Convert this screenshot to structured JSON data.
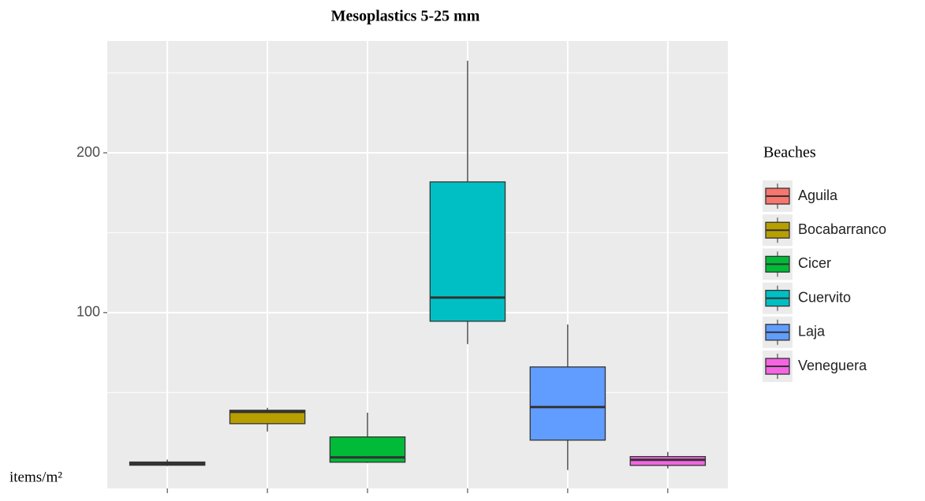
{
  "chart_data": {
    "type": "boxplot",
    "title": "Mesoplastics 5-25 mm",
    "y_label": "items/m²",
    "legend_title": "Beaches",
    "categories": [
      null,
      null,
      null,
      null,
      null,
      null
    ],
    "series": [
      {
        "name": "Aguila",
        "color": "#F8766D",
        "min": 4,
        "q1": 4.5,
        "median": 5.5,
        "q3": 6.5,
        "max": 8
      },
      {
        "name": "Bocabarranco",
        "color": "#B79F00",
        "min": 25.6,
        "q1": 30.5,
        "median": 37.9,
        "q3": 38.9,
        "max": 40.4
      },
      {
        "name": "Cicer",
        "color": "#00BA38",
        "min": 5.9,
        "q1": 6.4,
        "median": 9.4,
        "q3": 22.2,
        "max": 37.4
      },
      {
        "name": "Cuervito",
        "color": "#00BFC4",
        "min": 80.3,
        "q1": 94.6,
        "median": 109.4,
        "q3": 181.8,
        "max": 257.6
      },
      {
        "name": "Laja",
        "color": "#619CFF",
        "min": 1.5,
        "q1": 20.2,
        "median": 40.9,
        "q3": 66,
        "max": 92.6
      },
      {
        "name": "Veneguera",
        "color": "#F564E3",
        "min": 2.5,
        "q1": 4.4,
        "median": 7.9,
        "q3": 9.9,
        "max": 12.8
      }
    ],
    "ylim": [
      -10,
      270
    ],
    "yticks": [
      100,
      200
    ],
    "minor_yticks": [
      50,
      150,
      250
    ],
    "grid": true,
    "legend": "right"
  }
}
